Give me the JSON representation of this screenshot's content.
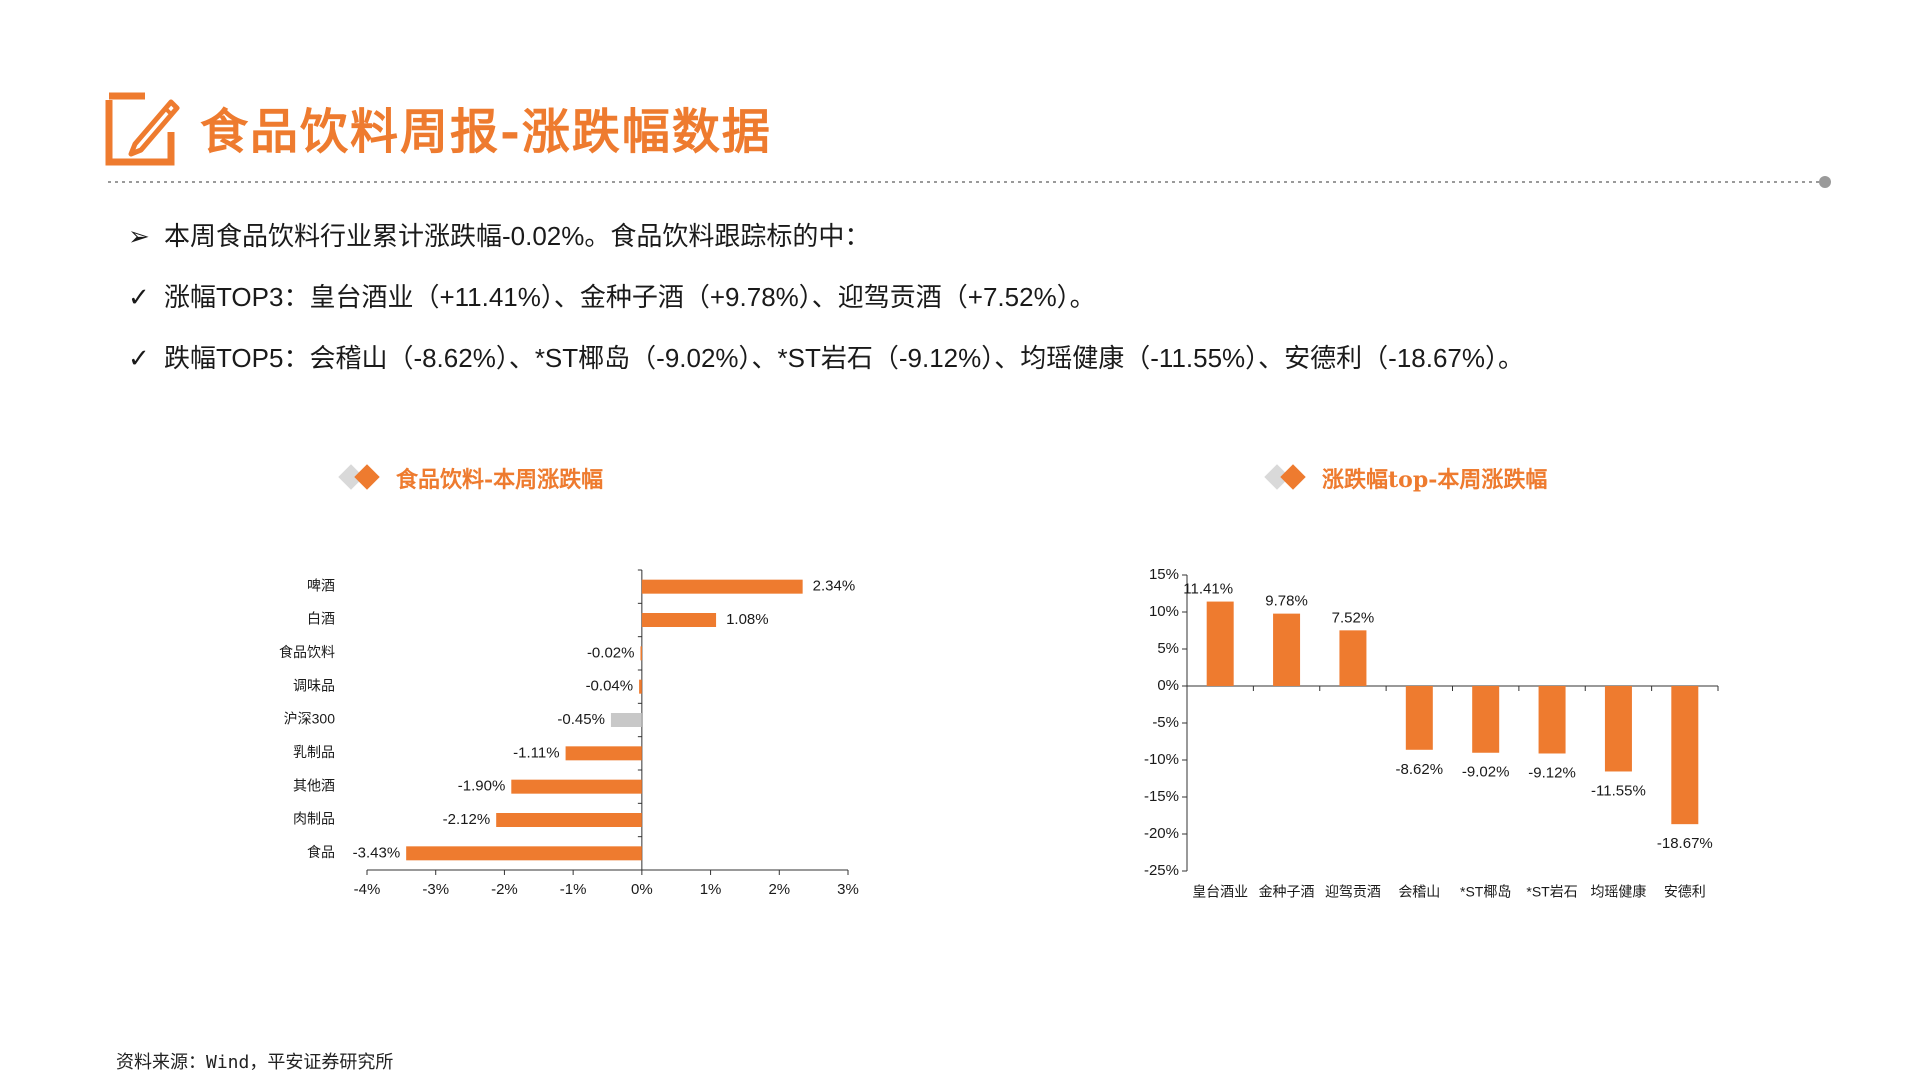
{
  "header": {
    "title": "食品饮料周报-涨跌幅数据",
    "icon": "pencil-edit-icon",
    "accent_color": "#ee7b2f"
  },
  "bullets": [
    {
      "marker": "➢",
      "text": "本周食品饮料行业累计涨跌幅-0.02%。食品饮料跟踪标的中："
    },
    {
      "marker": "✓",
      "text": "涨幅TOP3：皇台酒业（+11.41%）、金种子酒（+9.78%）、迎驾贡酒（+7.52%）。"
    },
    {
      "marker": "✓",
      "text": "跌幅TOP5：会稽山（-8.62%）、*ST椰岛（-9.02%）、*ST岩石（-9.12%）、均瑶健康（-11.55%）、安德利（-18.67%）。"
    }
  ],
  "chart_data": [
    {
      "type": "bar",
      "orientation": "horizontal",
      "title": "食品饮料-本周涨跌幅",
      "categories": [
        "啤酒",
        "白酒",
        "食品饮料",
        "调味品",
        "沪深300",
        "乳制品",
        "其他酒",
        "肉制品",
        "食品"
      ],
      "values": [
        2.34,
        1.08,
        -0.02,
        -0.04,
        -0.45,
        -1.11,
        -1.9,
        -2.12,
        -3.43
      ],
      "data_labels": [
        "2.34%",
        "1.08%",
        "-0.02%",
        "-0.04%",
        "-0.45%",
        "-1.11%",
        "-1.90%",
        "-2.12%",
        "-3.43%"
      ],
      "xlim": [
        -4,
        3
      ],
      "x_ticks": [
        "-4%",
        "-3%",
        "-2%",
        "-1%",
        "0%",
        "1%",
        "2%",
        "3%"
      ],
      "bar_color": "#ee7b2f",
      "highlight_color": "#c8c8c8",
      "highlight_category": "沪深300",
      "grid": false
    },
    {
      "type": "bar",
      "orientation": "vertical",
      "title": "涨跌幅top-本周涨跌幅",
      "categories": [
        "皇台酒业",
        "金种子酒",
        "迎驾贡酒",
        "会稽山",
        "*ST椰岛",
        "*ST岩石",
        "均瑶健康",
        "安德利"
      ],
      "values": [
        11.41,
        9.78,
        7.52,
        -8.62,
        -9.02,
        -9.12,
        -11.55,
        -18.67
      ],
      "data_labels": [
        "11.41%",
        "9.78%",
        "7.52%",
        "-8.62%",
        "-9.02%",
        "-9.12%",
        "-11.55%",
        "-18.67%"
      ],
      "ylim": [
        -25,
        15
      ],
      "y_ticks": [
        "15%",
        "10%",
        "5%",
        "0%",
        "-5%",
        "-10%",
        "-15%",
        "-20%",
        "-25%"
      ],
      "bar_color": "#ee7b2f",
      "grid": false
    }
  ],
  "source": "资料来源：Wind，平安证券研究所"
}
